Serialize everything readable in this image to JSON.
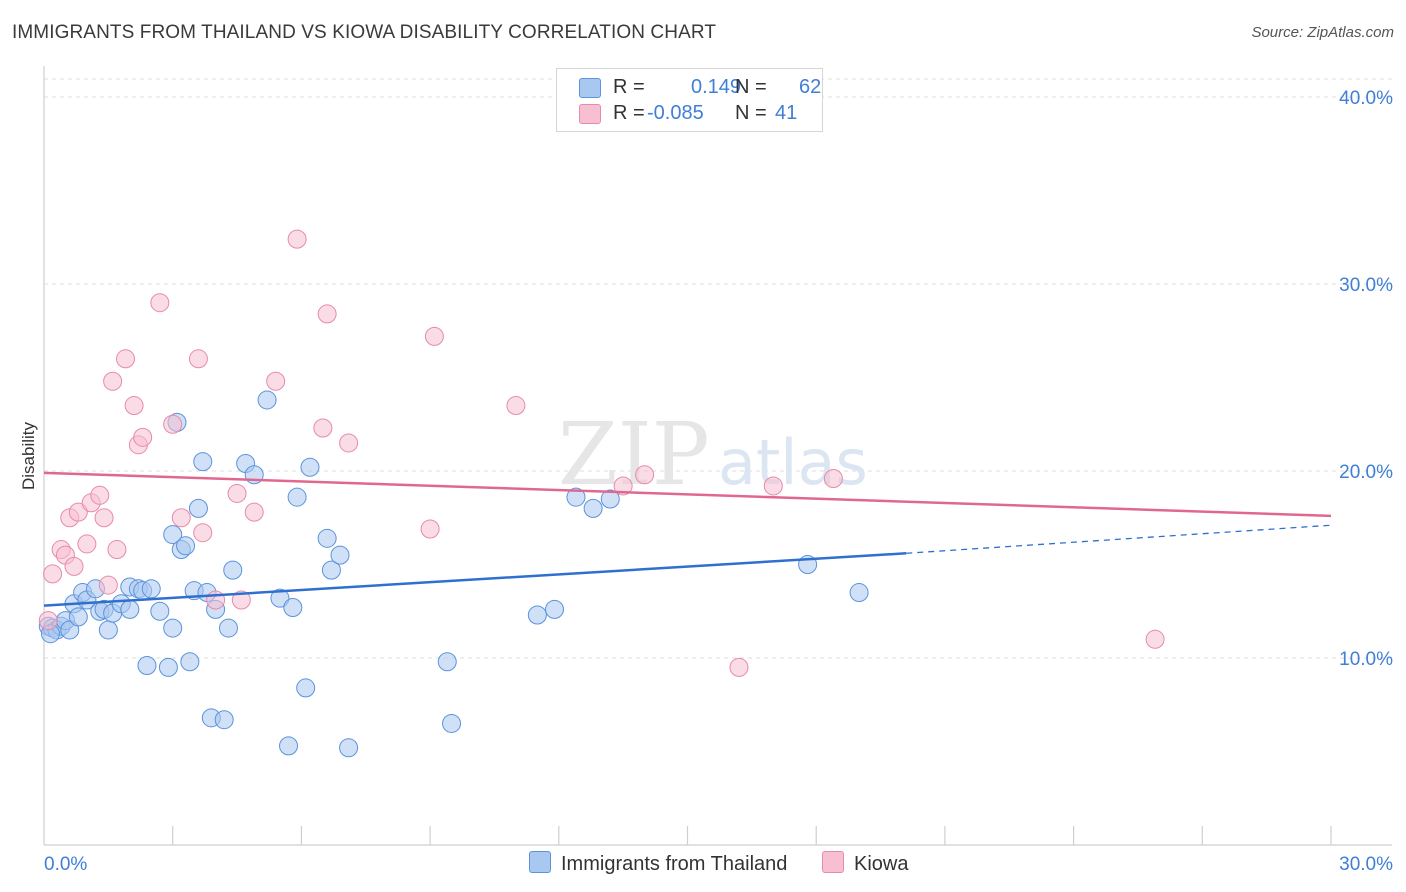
{
  "header": {
    "title": "IMMIGRANTS FROM THAILAND VS KIOWA DISABILITY CORRELATION CHART",
    "source": "Source: ZipAtlas.com"
  },
  "legend_top": {
    "rows": [
      {
        "r_label": "R =",
        "r_value": "0.149",
        "n_label": "N =",
        "n_value": "62"
      },
      {
        "r_label": "R =",
        "r_value": "-0.085",
        "n_label": "N =",
        "n_value": "41"
      }
    ]
  },
  "legend_bottom": {
    "series1": "Immigrants from Thailand",
    "series2": "Kiowa"
  },
  "watermark": {
    "zip": "ZIP",
    "atlas": "atlas"
  },
  "colors": {
    "series1_fill": "#a9c8f0",
    "series1_stroke": "#5b93dc",
    "series1_line": "#2f6fcf",
    "series2_fill": "#f6bfd2",
    "series2_stroke": "#e88aaa",
    "series2_line": "#e0688f",
    "axis_label": "#3f7fd6",
    "grid": "#dddddd"
  },
  "chart_data": {
    "type": "scatter",
    "title": "IMMIGRANTS FROM THAILAND VS KIOWA DISABILITY CORRELATION CHART",
    "xlabel": "",
    "ylabel": "Disability",
    "xlim": [
      0,
      30
    ],
    "ylim": [
      0,
      40
    ],
    "x_tick_labels": [
      "0.0%",
      "30.0%"
    ],
    "y_ticks": [
      10,
      20,
      30,
      40
    ],
    "y_tick_labels": [
      "10.0%",
      "20.0%",
      "30.0%",
      "40.0%"
    ],
    "grid": true,
    "series": [
      {
        "name": "Immigrants from Thailand",
        "R": 0.149,
        "N": 62,
        "trend": {
          "x0": 0,
          "y0": 12.8,
          "x1": 20.1,
          "y1": 15.6,
          "dashed_to_x": 30,
          "dashed_to_y": 17.1
        },
        "points": [
          [
            0.1,
            11.7
          ],
          [
            0.2,
            11.6
          ],
          [
            0.3,
            11.5
          ],
          [
            0.4,
            11.7
          ],
          [
            0.5,
            12.0
          ],
          [
            0.6,
            11.5
          ],
          [
            0.7,
            12.9
          ],
          [
            0.8,
            12.2
          ],
          [
            0.9,
            13.5
          ],
          [
            1.0,
            13.1
          ],
          [
            1.2,
            13.7
          ],
          [
            1.3,
            12.5
          ],
          [
            1.4,
            12.6
          ],
          [
            1.5,
            11.5
          ],
          [
            1.6,
            12.4
          ],
          [
            1.8,
            12.9
          ],
          [
            2.0,
            12.6
          ],
          [
            2.0,
            13.8
          ],
          [
            2.2,
            13.7
          ],
          [
            2.3,
            13.6
          ],
          [
            2.5,
            13.7
          ],
          [
            2.4,
            9.6
          ],
          [
            2.7,
            12.5
          ],
          [
            2.9,
            9.5
          ],
          [
            3.0,
            16.6
          ],
          [
            3.0,
            11.6
          ],
          [
            3.1,
            22.6
          ],
          [
            3.2,
            15.8
          ],
          [
            3.3,
            16.0
          ],
          [
            3.4,
            9.8
          ],
          [
            3.5,
            13.6
          ],
          [
            3.6,
            18.0
          ],
          [
            3.7,
            20.5
          ],
          [
            3.8,
            13.5
          ],
          [
            3.9,
            6.8
          ],
          [
            4.0,
            12.6
          ],
          [
            4.2,
            6.7
          ],
          [
            4.3,
            11.6
          ],
          [
            4.4,
            14.7
          ],
          [
            4.7,
            20.4
          ],
          [
            4.9,
            19.8
          ],
          [
            5.2,
            23.8
          ],
          [
            5.5,
            13.2
          ],
          [
            5.7,
            5.3
          ],
          [
            5.8,
            12.7
          ],
          [
            5.9,
            18.6
          ],
          [
            6.1,
            8.4
          ],
          [
            6.2,
            20.2
          ],
          [
            6.6,
            16.4
          ],
          [
            6.7,
            14.7
          ],
          [
            6.9,
            15.5
          ],
          [
            7.1,
            5.2
          ],
          [
            9.4,
            9.8
          ],
          [
            9.5,
            6.5
          ],
          [
            11.5,
            12.3
          ],
          [
            11.9,
            12.6
          ],
          [
            12.4,
            18.6
          ],
          [
            12.8,
            18.0
          ],
          [
            13.2,
            18.5
          ],
          [
            17.8,
            15.0
          ],
          [
            19.0,
            13.5
          ],
          [
            0.15,
            11.3
          ]
        ]
      },
      {
        "name": "Kiowa",
        "R": -0.085,
        "N": 41,
        "trend": {
          "x0": 0,
          "y0": 19.9,
          "x1": 30,
          "y1": 17.6
        },
        "points": [
          [
            0.1,
            12.0
          ],
          [
            0.2,
            14.5
          ],
          [
            0.4,
            15.8
          ],
          [
            0.5,
            15.5
          ],
          [
            0.6,
            17.5
          ],
          [
            0.7,
            14.9
          ],
          [
            0.8,
            17.8
          ],
          [
            1.0,
            16.1
          ],
          [
            1.1,
            18.3
          ],
          [
            1.3,
            18.7
          ],
          [
            1.4,
            17.5
          ],
          [
            1.5,
            13.9
          ],
          [
            1.6,
            24.8
          ],
          [
            1.7,
            15.8
          ],
          [
            1.9,
            26.0
          ],
          [
            2.1,
            23.5
          ],
          [
            2.2,
            21.4
          ],
          [
            2.3,
            21.8
          ],
          [
            2.7,
            29.0
          ],
          [
            3.0,
            22.5
          ],
          [
            3.2,
            17.5
          ],
          [
            3.6,
            26.0
          ],
          [
            3.7,
            16.7
          ],
          [
            4.0,
            13.1
          ],
          [
            4.5,
            18.8
          ],
          [
            4.6,
            13.1
          ],
          [
            4.9,
            17.8
          ],
          [
            5.4,
            24.8
          ],
          [
            5.9,
            32.4
          ],
          [
            6.5,
            22.3
          ],
          [
            6.6,
            28.4
          ],
          [
            7.1,
            21.5
          ],
          [
            9.0,
            16.9
          ],
          [
            9.1,
            27.2
          ],
          [
            11.0,
            23.5
          ],
          [
            13.5,
            19.2
          ],
          [
            14.0,
            19.8
          ],
          [
            16.2,
            9.5
          ],
          [
            17.0,
            19.2
          ],
          [
            18.4,
            19.6
          ],
          [
            25.9,
            11.0
          ]
        ]
      }
    ]
  }
}
